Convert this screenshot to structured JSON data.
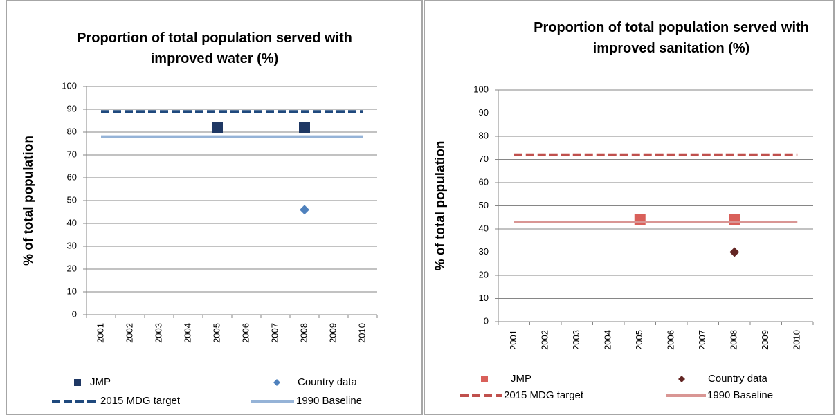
{
  "chart_data": [
    {
      "type": "line",
      "title": "Proportion of total population served with improved water (%)",
      "y_label": "% of total population",
      "categories": [
        "2001",
        "2002",
        "2003",
        "2004",
        "2005",
        "2006",
        "2007",
        "2008",
        "2009",
        "2010"
      ],
      "series": [
        {
          "name": "JMP",
          "color": "#1f3864",
          "marker": "square",
          "values": [
            null,
            null,
            null,
            null,
            82,
            null,
            null,
            82,
            null,
            null
          ]
        },
        {
          "name": "Country data",
          "color": "#4f81bd",
          "marker": "diamond",
          "values": [
            null,
            null,
            null,
            null,
            null,
            null,
            null,
            46,
            null,
            null
          ]
        },
        {
          "name": "2015 MDG target",
          "color": "#1f497d",
          "line": "dashed",
          "values": [
            89,
            89,
            89,
            89,
            89,
            89,
            89,
            89,
            89,
            89
          ]
        },
        {
          "name": "1990 Baseline",
          "color": "#95b3d7",
          "line": "solid",
          "values": [
            78,
            78,
            78,
            78,
            78,
            78,
            78,
            78,
            78,
            78
          ]
        }
      ],
      "ylim": [
        0,
        100
      ],
      "yticks": [
        0,
        10,
        20,
        30,
        40,
        50,
        60,
        70,
        80,
        90,
        100
      ],
      "grid": true
    },
    {
      "type": "line",
      "title": "Proportion of total population served with improved sanitation (%)",
      "y_label": "% of total population",
      "categories": [
        "2001",
        "2002",
        "2003",
        "2004",
        "2005",
        "2006",
        "2007",
        "2008",
        "2009",
        "2010"
      ],
      "series": [
        {
          "name": "JMP",
          "color": "#d9605a",
          "marker": "square",
          "values": [
            null,
            null,
            null,
            null,
            44,
            null,
            null,
            44,
            null,
            null
          ]
        },
        {
          "name": "Country data",
          "color": "#632523",
          "marker": "diamond",
          "values": [
            null,
            null,
            null,
            null,
            null,
            null,
            null,
            30,
            null,
            null
          ]
        },
        {
          "name": "2015 MDG target",
          "color": "#c0504d",
          "line": "dashed",
          "values": [
            72,
            72,
            72,
            72,
            72,
            72,
            72,
            72,
            72,
            72
          ]
        },
        {
          "name": "1990 Baseline",
          "color": "#d99694",
          "line": "solid",
          "values": [
            43,
            43,
            43,
            43,
            43,
            43,
            43,
            43,
            43,
            43
          ]
        }
      ],
      "ylim": [
        0,
        100
      ],
      "yticks": [
        0,
        10,
        20,
        30,
        40,
        50,
        60,
        70,
        80,
        90,
        100
      ],
      "grid": true
    }
  ]
}
